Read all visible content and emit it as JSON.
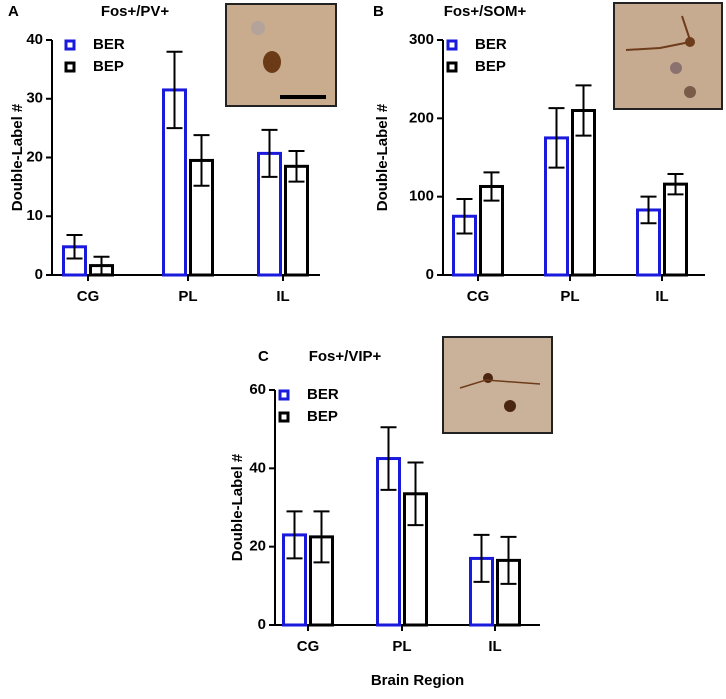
{
  "chart_data": [
    {
      "type": "bar",
      "panel": "A",
      "title": "Fos+/PV+",
      "y_label": "Double-Label #",
      "categories": [
        "CG",
        "PL",
        "IL"
      ],
      "series": [
        {
          "name": "BER",
          "color": "#1a1adc",
          "values": [
            4.8,
            31.5,
            20.7
          ],
          "errors": [
            2,
            6.5,
            4
          ]
        },
        {
          "name": "BEP",
          "color": "#000000",
          "values": [
            1.6,
            19.5,
            18.5
          ],
          "errors": [
            1.5,
            4.3,
            2.6
          ]
        }
      ],
      "ylim": [
        0,
        40
      ],
      "yticks": [
        0,
        10,
        20,
        30,
        40
      ]
    },
    {
      "type": "bar",
      "panel": "B",
      "title": "Fos+/SOM+",
      "y_label": "Double-Label #",
      "categories": [
        "CG",
        "PL",
        "IL"
      ],
      "series": [
        {
          "name": "BER",
          "color": "#1a1adc",
          "values": [
            75,
            175,
            83
          ],
          "errors": [
            22,
            38,
            17
          ]
        },
        {
          "name": "BEP",
          "color": "#000000",
          "values": [
            113,
            210,
            116
          ],
          "errors": [
            18,
            32,
            13
          ]
        }
      ],
      "ylim": [
        0,
        300
      ],
      "yticks": [
        0,
        100,
        200,
        300
      ]
    },
    {
      "type": "bar",
      "panel": "C",
      "title": "Fos+/VIP+",
      "y_label": "Double-Label #",
      "x_label": "Brain Region",
      "categories": [
        "CG",
        "PL",
        "IL"
      ],
      "series": [
        {
          "name": "BER",
          "color": "#1a1adc",
          "values": [
            23,
            42.5,
            17
          ],
          "errors": [
            6,
            8,
            6
          ]
        },
        {
          "name": "BEP",
          "color": "#000000",
          "values": [
            22.5,
            33.5,
            16.5
          ],
          "errors": [
            6.5,
            8,
            6
          ]
        }
      ],
      "ylim": [
        0,
        60
      ],
      "yticks": [
        0,
        20,
        40,
        60
      ]
    }
  ]
}
